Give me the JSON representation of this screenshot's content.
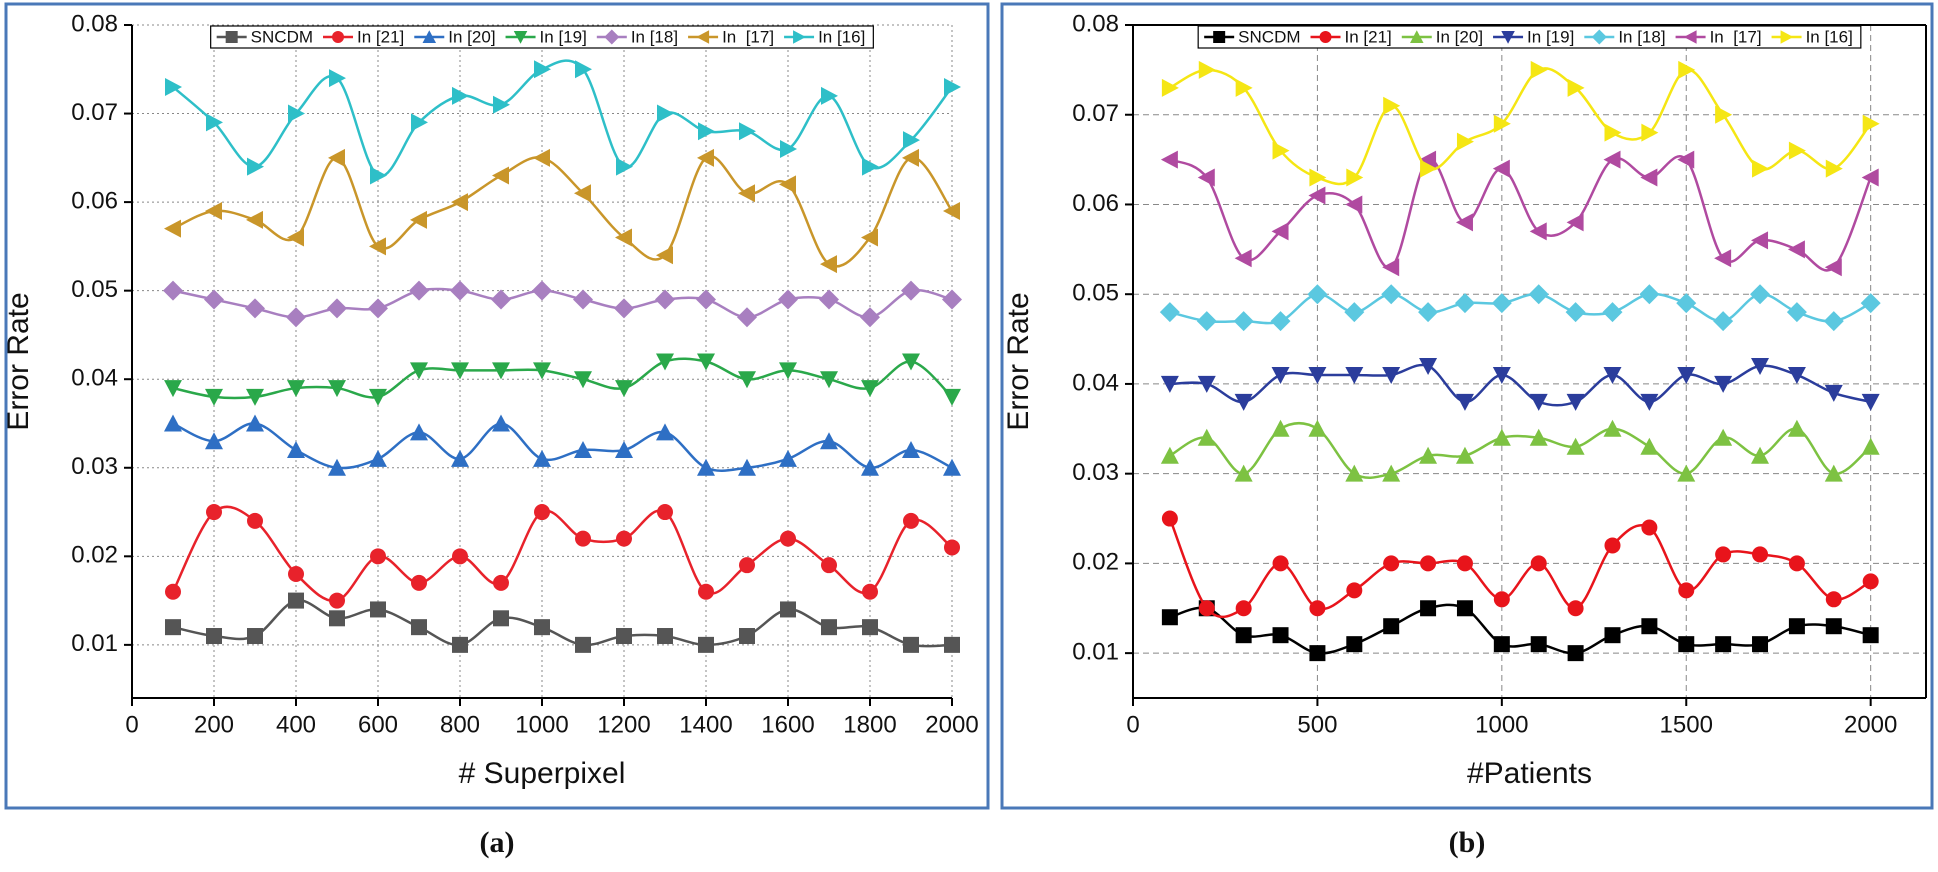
{
  "chart_data": [
    {
      "type": "line",
      "label": "(a)",
      "xlabel": "# Superpixel",
      "ylabel": "Error Rate",
      "x": [
        100,
        200,
        300,
        400,
        500,
        600,
        700,
        800,
        900,
        1000,
        1100,
        1200,
        1300,
        1400,
        1500,
        1600,
        1700,
        1800,
        1900,
        2000
      ],
      "xlim": [
        0,
        2000
      ],
      "xticks": [
        0,
        200,
        400,
        600,
        800,
        1000,
        1200,
        1400,
        1600,
        1800,
        2000
      ],
      "ylim": [
        0.004,
        0.08
      ],
      "yticks": [
        0.01,
        0.02,
        0.03,
        0.04,
        0.05,
        0.06,
        0.07,
        0.08
      ],
      "grid": true,
      "grid_style": "dotted",
      "smooth": true,
      "series": [
        {
          "name": "SNCDM",
          "color": "#555555",
          "marker": "square",
          "values": [
            0.012,
            0.011,
            0.011,
            0.015,
            0.013,
            0.014,
            0.012,
            0.01,
            0.013,
            0.012,
            0.01,
            0.011,
            0.011,
            0.01,
            0.011,
            0.014,
            0.012,
            0.012,
            0.01,
            0.01
          ]
        },
        {
          "name": "In [21]",
          "color": "#e8222b",
          "marker": "circle",
          "values": [
            0.016,
            0.025,
            0.024,
            0.018,
            0.015,
            0.02,
            0.017,
            0.02,
            0.017,
            0.025,
            0.022,
            0.022,
            0.025,
            0.016,
            0.019,
            0.022,
            0.019,
            0.016,
            0.024,
            0.021
          ]
        },
        {
          "name": "In [20]",
          "color": "#2e6fc4",
          "marker": "triangle-up",
          "values": [
            0.035,
            0.033,
            0.035,
            0.032,
            0.03,
            0.031,
            0.034,
            0.031,
            0.035,
            0.031,
            0.032,
            0.032,
            0.034,
            0.03,
            0.03,
            0.031,
            0.033,
            0.03,
            0.032,
            0.03
          ]
        },
        {
          "name": "In [19]",
          "color": "#2aa84a",
          "marker": "triangle-down",
          "values": [
            0.039,
            0.038,
            0.038,
            0.039,
            0.039,
            0.038,
            0.041,
            0.041,
            0.041,
            0.041,
            0.04,
            0.039,
            0.042,
            0.042,
            0.04,
            0.041,
            0.04,
            0.039,
            0.042,
            0.038
          ]
        },
        {
          "name": "In [18]",
          "color": "#a87fc0",
          "marker": "diamond",
          "values": [
            0.05,
            0.049,
            0.048,
            0.047,
            0.048,
            0.048,
            0.05,
            0.05,
            0.049,
            0.05,
            0.049,
            0.048,
            0.049,
            0.049,
            0.047,
            0.049,
            0.049,
            0.047,
            0.05,
            0.049
          ]
        },
        {
          "name": "In  [17]",
          "color": "#c9962a",
          "marker": "triangle-left",
          "values": [
            0.057,
            0.059,
            0.058,
            0.056,
            0.065,
            0.055,
            0.058,
            0.06,
            0.063,
            0.065,
            0.061,
            0.056,
            0.054,
            0.065,
            0.061,
            0.062,
            0.053,
            0.056,
            0.065,
            0.059
          ]
        },
        {
          "name": "In [16]",
          "color": "#2ebfc8",
          "marker": "triangle-right",
          "values": [
            0.073,
            0.069,
            0.064,
            0.07,
            0.074,
            0.063,
            0.069,
            0.072,
            0.071,
            0.075,
            0.075,
            0.064,
            0.07,
            0.068,
            0.068,
            0.066,
            0.072,
            0.064,
            0.067,
            0.073
          ]
        }
      ]
    },
    {
      "type": "line",
      "label": "(b)",
      "xlabel": "#Patients",
      "ylabel": "Error Rate",
      "x": [
        100,
        200,
        300,
        400,
        500,
        600,
        700,
        800,
        900,
        1000,
        1100,
        1200,
        1300,
        1400,
        1500,
        1600,
        1700,
        1800,
        1900,
        2000
      ],
      "xlim": [
        0,
        2150
      ],
      "xticks": [
        0,
        500,
        1000,
        1500,
        2000
      ],
      "ylim": [
        0.005,
        0.08
      ],
      "yticks": [
        0.01,
        0.02,
        0.03,
        0.04,
        0.05,
        0.06,
        0.07,
        0.08
      ],
      "grid": true,
      "grid_style": "dashed",
      "smooth": true,
      "series": [
        {
          "name": "SNCDM",
          "color": "#000000",
          "marker": "square",
          "values": [
            0.014,
            0.015,
            0.012,
            0.012,
            0.01,
            0.011,
            0.013,
            0.015,
            0.015,
            0.011,
            0.011,
            0.01,
            0.012,
            0.013,
            0.011,
            0.011,
            0.011,
            0.013,
            0.013,
            0.012
          ]
        },
        {
          "name": "In [21]",
          "color": "#e8141b",
          "marker": "circle",
          "values": [
            0.025,
            0.015,
            0.015,
            0.02,
            0.015,
            0.017,
            0.02,
            0.02,
            0.02,
            0.016,
            0.02,
            0.015,
            0.022,
            0.024,
            0.017,
            0.021,
            0.021,
            0.02,
            0.016,
            0.018
          ]
        },
        {
          "name": "In [20]",
          "color": "#7dc242",
          "marker": "triangle-up",
          "values": [
            0.032,
            0.034,
            0.03,
            0.035,
            0.035,
            0.03,
            0.03,
            0.032,
            0.032,
            0.034,
            0.034,
            0.033,
            0.035,
            0.033,
            0.03,
            0.034,
            0.032,
            0.035,
            0.03,
            0.033
          ]
        },
        {
          "name": "In [19]",
          "color": "#2b3d9c",
          "marker": "triangle-down",
          "values": [
            0.04,
            0.04,
            0.038,
            0.041,
            0.041,
            0.041,
            0.041,
            0.042,
            0.038,
            0.041,
            0.038,
            0.038,
            0.041,
            0.038,
            0.041,
            0.04,
            0.042,
            0.041,
            0.039,
            0.038
          ]
        },
        {
          "name": "In [18]",
          "color": "#5bc8e0",
          "marker": "diamond",
          "values": [
            0.048,
            0.047,
            0.047,
            0.047,
            0.05,
            0.048,
            0.05,
            0.048,
            0.049,
            0.049,
            0.05,
            0.048,
            0.048,
            0.05,
            0.049,
            0.047,
            0.05,
            0.048,
            0.047,
            0.049
          ]
        },
        {
          "name": "In  [17]",
          "color": "#b04aa0",
          "marker": "triangle-left",
          "values": [
            0.065,
            0.063,
            0.054,
            0.057,
            0.061,
            0.06,
            0.053,
            0.065,
            0.058,
            0.064,
            0.057,
            0.058,
            0.065,
            0.063,
            0.065,
            0.054,
            0.056,
            0.055,
            0.053,
            0.063
          ]
        },
        {
          "name": "In [16]",
          "color": "#f5e614",
          "marker": "triangle-right",
          "values": [
            0.073,
            0.075,
            0.073,
            0.066,
            0.063,
            0.063,
            0.071,
            0.064,
            0.067,
            0.069,
            0.075,
            0.073,
            0.068,
            0.068,
            0.075,
            0.07,
            0.064,
            0.066,
            0.064,
            0.069
          ]
        }
      ]
    }
  ]
}
